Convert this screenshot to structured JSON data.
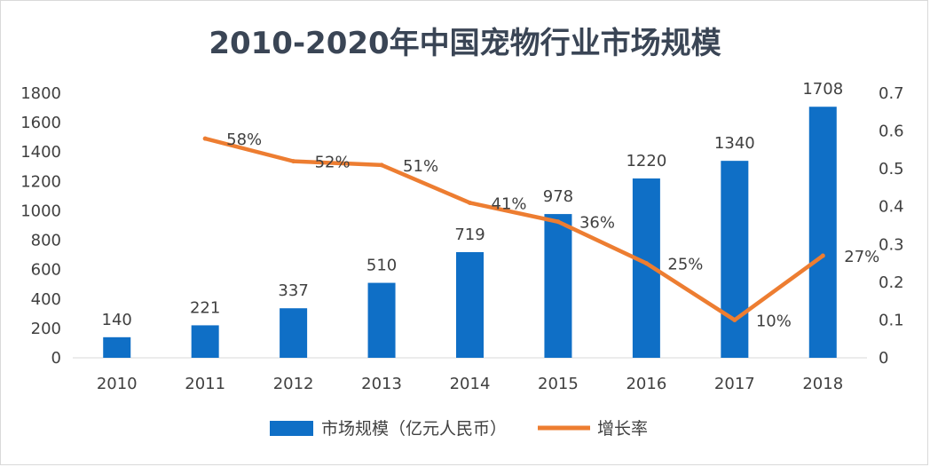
{
  "chart_data": {
    "type": "bar+line",
    "title": "2010-2020年中国宠物行业市场规模",
    "categories": [
      "2010",
      "2011",
      "2012",
      "2013",
      "2014",
      "2015",
      "2016",
      "2017",
      "2018"
    ],
    "series": [
      {
        "name": "市场规模（亿元人民币）",
        "kind": "bar",
        "axis": "left",
        "values": [
          140,
          221,
          337,
          510,
          719,
          978,
          1220,
          1340,
          1708
        ],
        "labels": [
          "140",
          "221",
          "337",
          "510",
          "719",
          "978",
          "1220",
          "1340",
          "1708"
        ]
      },
      {
        "name": "增长率",
        "kind": "line",
        "axis": "right",
        "values": [
          null,
          0.58,
          0.52,
          0.51,
          0.41,
          0.36,
          0.25,
          0.1,
          0.27
        ],
        "labels": [
          "",
          "58%",
          "52%",
          "51%",
          "41%",
          "36%",
          "25%",
          "10%",
          "27%"
        ]
      }
    ],
    "y_left": {
      "min": 0,
      "max": 1800,
      "ticks": [
        "0",
        "200",
        "400",
        "600",
        "800",
        "1000",
        "1200",
        "1400",
        "1600",
        "1800"
      ]
    },
    "y_right": {
      "min": 0,
      "max": 0.7,
      "ticks": [
        "0",
        "0.1",
        "0.2",
        "0.3",
        "0.4",
        "0.5",
        "0.6",
        "0.7"
      ]
    },
    "grid": false,
    "legend_position": "bottom",
    "colors": {
      "bar": "#0f6fc6",
      "line": "#ed7d31",
      "title": "#3a4555",
      "text": "#404040",
      "axis": "#d9d9d9"
    }
  }
}
